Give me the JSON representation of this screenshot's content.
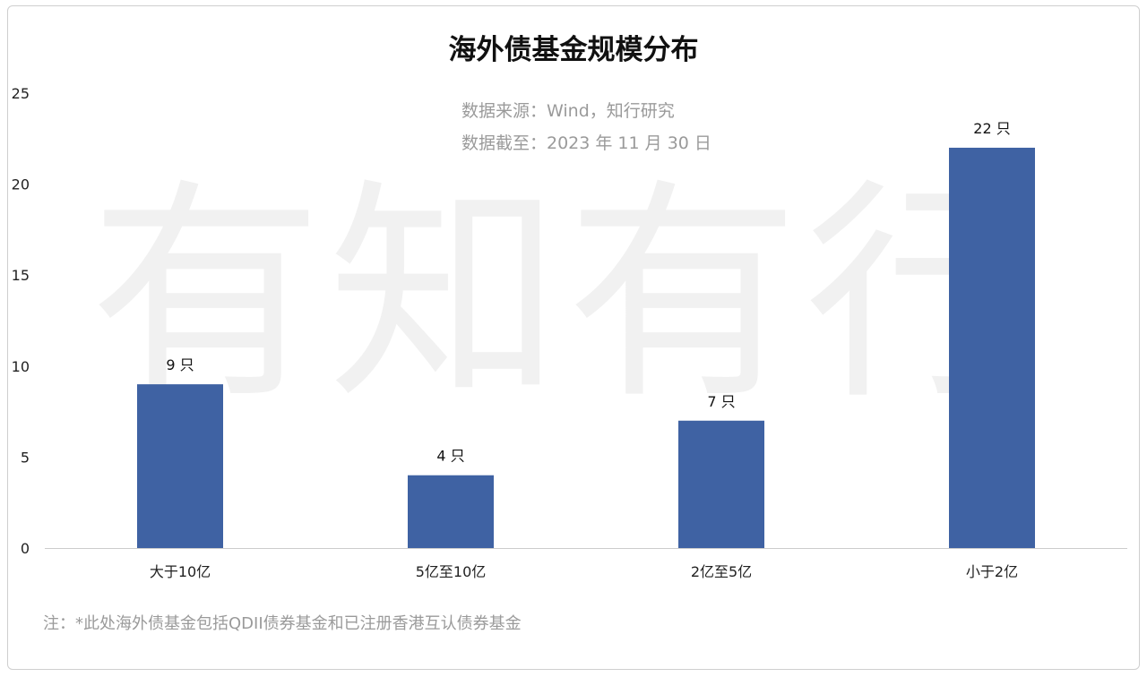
{
  "chart_data": {
    "type": "bar",
    "title": "海外债基金规模分布",
    "subtitle_lines": [
      "数据来源：Wind，知行研究",
      "数据截至：2023 年 11 月 30 日"
    ],
    "categories": [
      "大于10亿",
      "5亿至10亿",
      "2亿至5亿",
      "小于2亿"
    ],
    "values": [
      9,
      4,
      7,
      22
    ],
    "data_labels": [
      "9 只",
      "4 只",
      "7 只",
      "22 只"
    ],
    "ylim": [
      0,
      25
    ],
    "yticks": [
      0,
      5,
      10,
      15,
      20,
      25
    ],
    "xlabel": "",
    "ylabel": "",
    "bar_color": "#3f62a3",
    "grid": false,
    "note": "注：*此处海外债基金包括QDII债券基金和已注册香港互认债券基金"
  },
  "watermark": "有知有行"
}
